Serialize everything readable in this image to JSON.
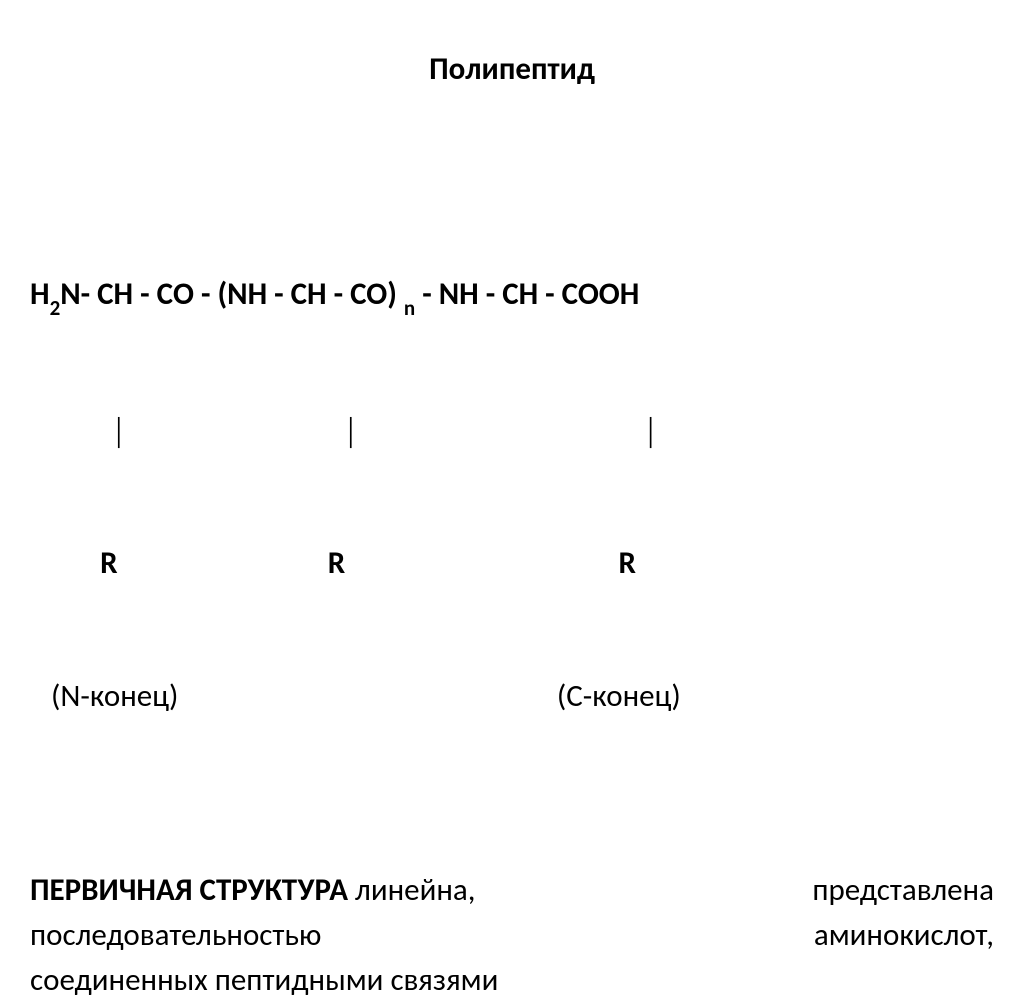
{
  "title": "Полипептид",
  "formula": {
    "line1_parts": {
      "h": "H",
      "sub2": "2",
      "rest": "N- СН - СО - (NH - CH - CO) ",
      "subn": "n",
      "rest2": " - NH - CH - COOH"
    },
    "connectors": "            │                                │                                          │",
    "r_groups": "          R                              R                                       R",
    "termini_left": "   (N-конец)",
    "termini_right": "(С-конец)     "
  },
  "description": {
    "bold_text": "ПЕРВИЧНАЯ  СТРУКТУРА",
    "line1_rest_a": " линейна,",
    "line1_rest_b": "представлена",
    "line2_a": "последовательностью",
    "line2_b": "аминокислот,",
    "line3": "соединенных пептидными связями"
  },
  "colors": {
    "background": "#ffffff",
    "text": "#000000"
  },
  "fonts": {
    "title_size": 31,
    "body_size": 31,
    "sub_size": 21
  }
}
